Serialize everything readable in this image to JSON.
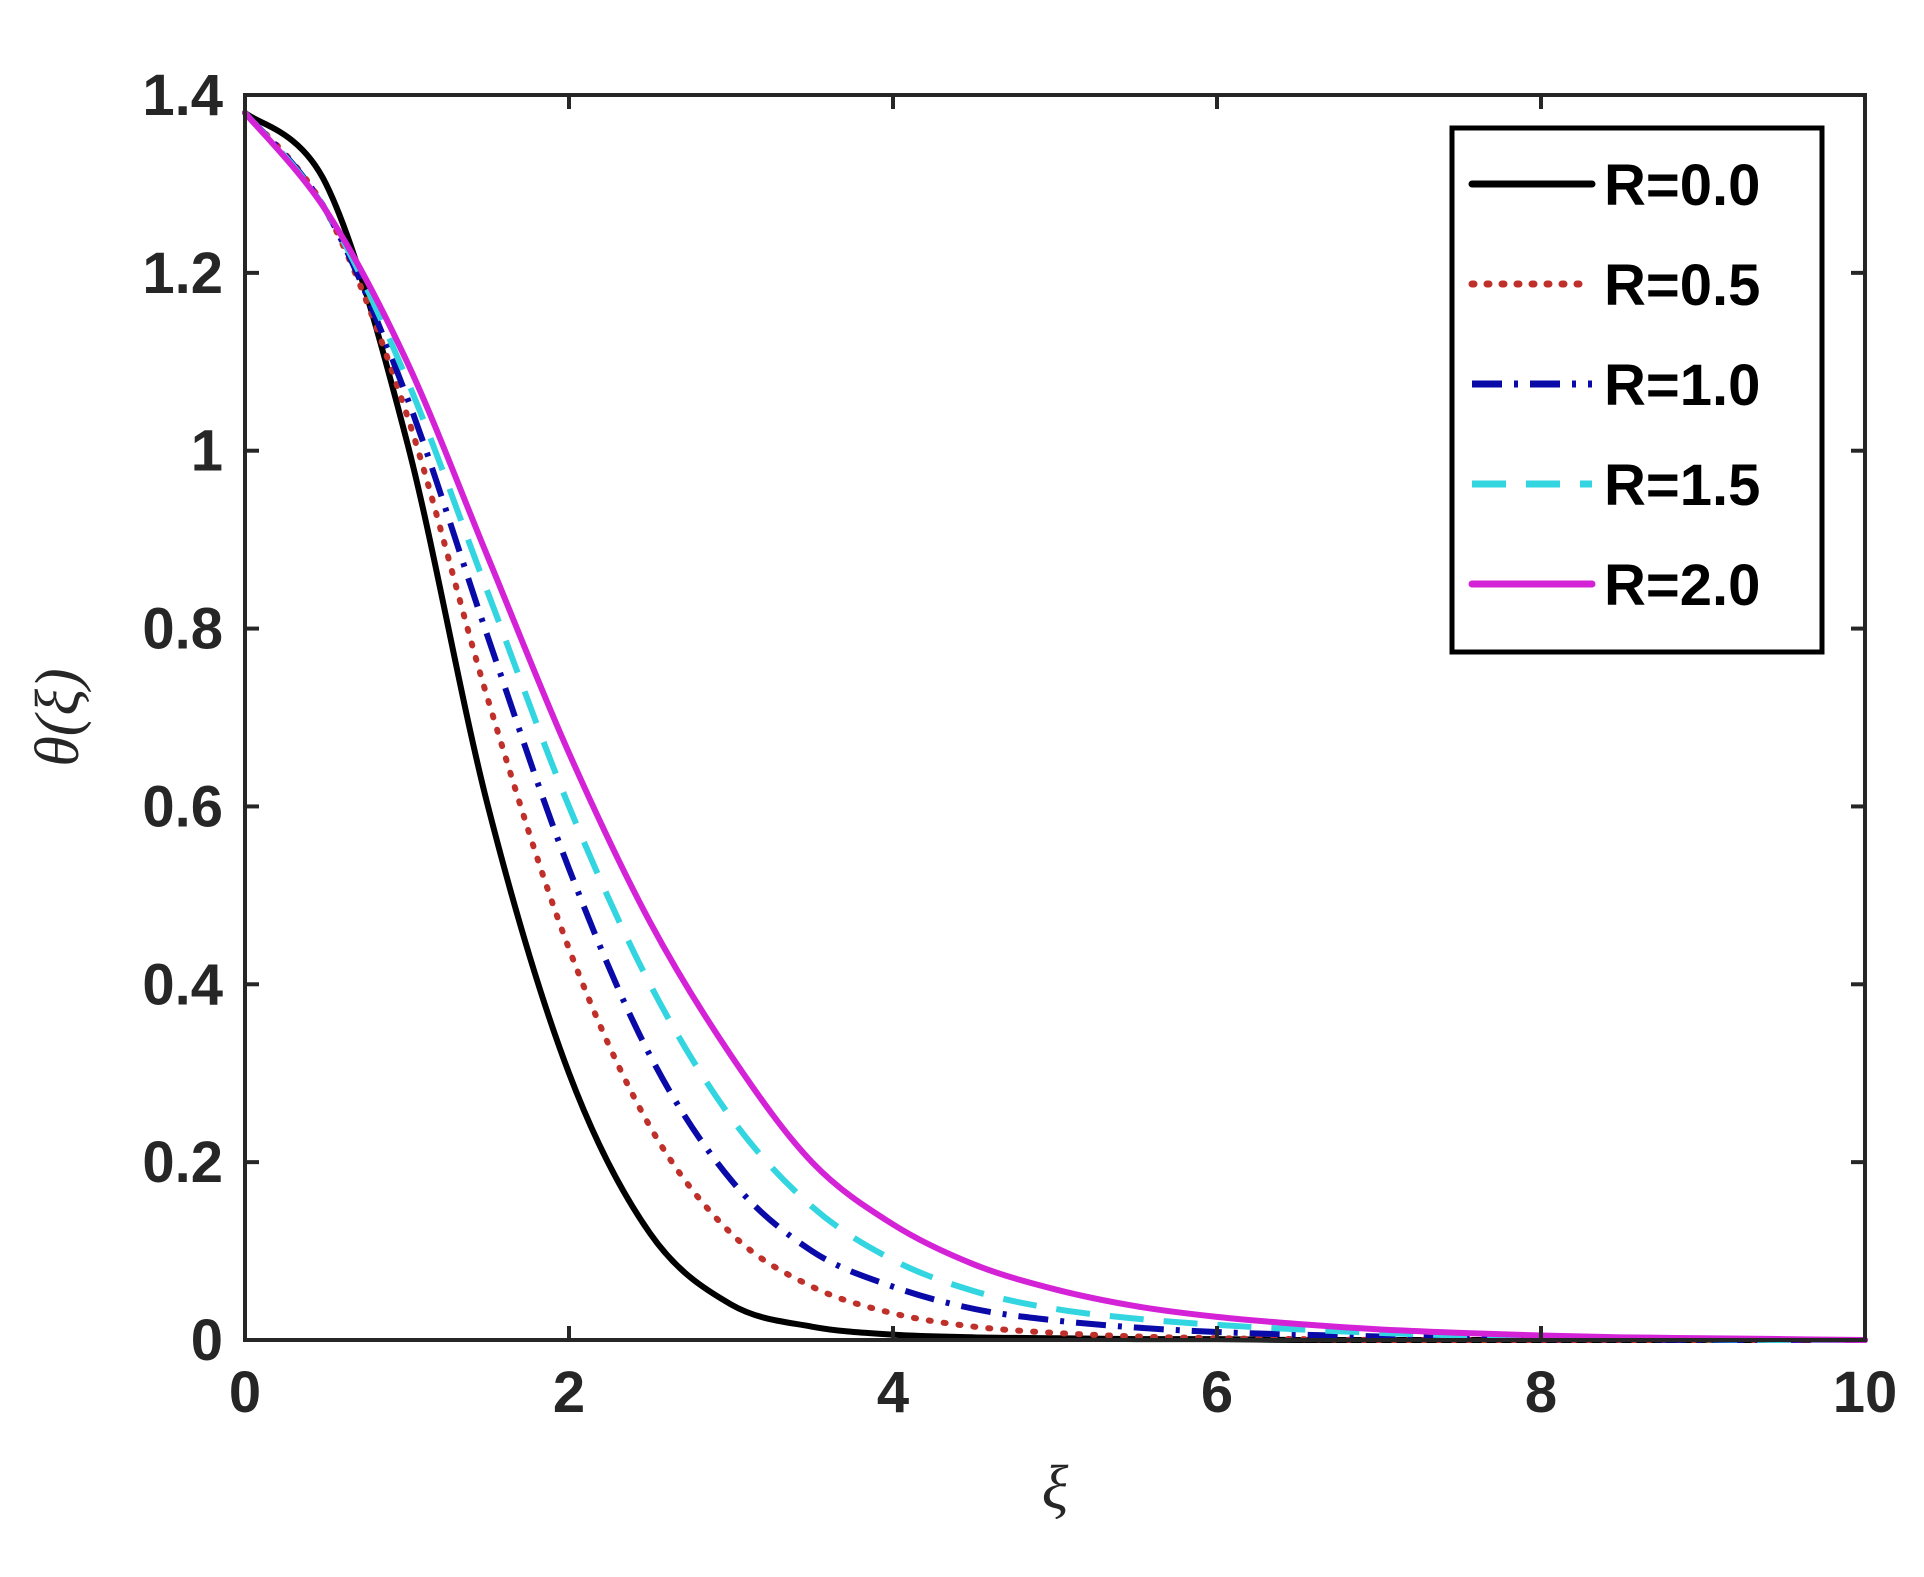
{
  "chart_data": {
    "type": "line",
    "title": "",
    "xlabel": "ξ",
    "ylabel": "θ(ξ)",
    "xlim": [
      0,
      10
    ],
    "ylim": [
      0,
      1.4
    ],
    "xticks": [
      0,
      2,
      4,
      6,
      8,
      10
    ],
    "xtick_labels": [
      "0",
      "2",
      "4",
      "6",
      "8",
      "10"
    ],
    "yticks": [
      0,
      0.2,
      0.4,
      0.6,
      0.8,
      1,
      1.2,
      1.4
    ],
    "ytick_labels": [
      "0",
      "0.2",
      "0.4",
      "0.6",
      "0.8",
      "1",
      "1.2",
      "1.4"
    ],
    "grid": false,
    "legend_position": "top-right",
    "x": [
      0,
      0.5,
      1,
      1.5,
      2,
      2.5,
      3,
      3.5,
      4,
      4.5,
      5,
      5.5,
      6,
      6.5,
      7,
      7.5,
      8,
      8.5,
      9,
      9.5,
      10
    ],
    "series": [
      {
        "name": "R=0.0",
        "color": "#000000",
        "dash": "solid",
        "values": [
          1.38,
          1.3,
          1.01,
          0.6,
          0.3,
          0.12,
          0.04,
          0.015,
          0.006,
          0.003,
          0.002,
          0.001,
          0.001,
          0,
          0,
          0,
          0,
          0,
          0,
          0,
          0
        ]
      },
      {
        "name": "R=0.5",
        "color": "#C0302B",
        "dash": "dotted",
        "values": [
          1.38,
          1.27,
          1.04,
          0.72,
          0.44,
          0.24,
          0.12,
          0.06,
          0.03,
          0.015,
          0.008,
          0.004,
          0.002,
          0.001,
          0,
          0,
          0,
          0,
          0,
          0,
          0
        ]
      },
      {
        "name": "R=1.0",
        "color": "#0A0AA8",
        "dash": "dashdot",
        "values": [
          1.38,
          1.27,
          1.06,
          0.79,
          0.53,
          0.32,
          0.18,
          0.1,
          0.06,
          0.035,
          0.022,
          0.014,
          0.009,
          0.006,
          0.004,
          0.002,
          0.001,
          0.001,
          0,
          0,
          0
        ]
      },
      {
        "name": "R=1.5",
        "color": "#33D6E0",
        "dash": "dashed",
        "values": [
          1.38,
          1.27,
          1.08,
          0.84,
          0.6,
          0.4,
          0.25,
          0.15,
          0.09,
          0.055,
          0.035,
          0.024,
          0.017,
          0.012,
          0.008,
          0.005,
          0.003,
          0.002,
          0.001,
          0,
          0
        ]
      },
      {
        "name": "R=2.0",
        "color": "#D423D6",
        "dash": "solid",
        "values": [
          1.38,
          1.27,
          1.1,
          0.88,
          0.66,
          0.47,
          0.32,
          0.2,
          0.13,
          0.085,
          0.057,
          0.038,
          0.026,
          0.018,
          0.012,
          0.008,
          0.005,
          0.003,
          0.002,
          0.001,
          0
        ]
      }
    ]
  }
}
